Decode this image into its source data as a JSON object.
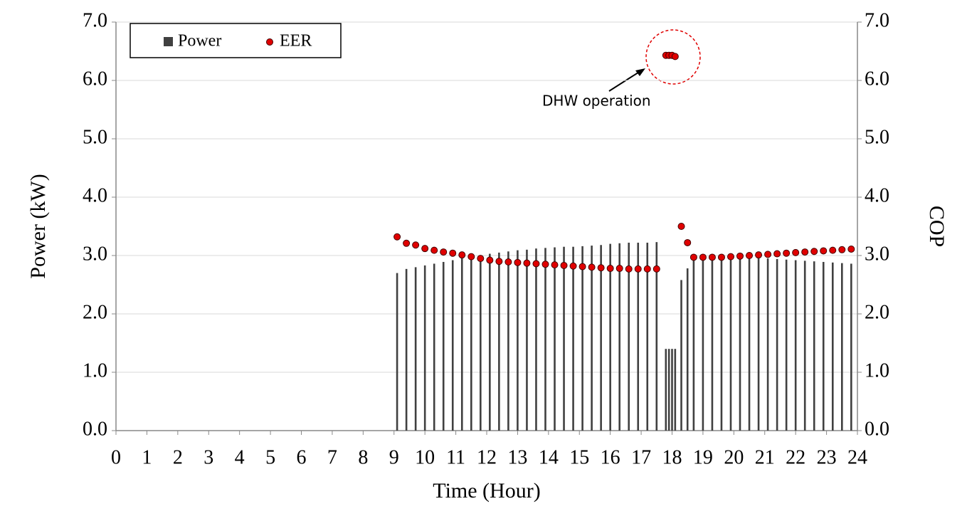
{
  "chart_data": {
    "type": "bar-scatter",
    "x_label": "Time (Hour)",
    "y_label": "Power (kW)",
    "y2_label": "COP",
    "annotation": "DHW operation",
    "x": [
      9.1,
      9.4,
      9.7,
      10.0,
      10.3,
      10.6,
      10.9,
      11.2,
      11.5,
      11.8,
      12.1,
      12.4,
      12.7,
      13.0,
      13.3,
      13.6,
      13.9,
      14.2,
      14.5,
      14.8,
      15.1,
      15.4,
      15.7,
      16.0,
      16.3,
      16.6,
      16.9,
      17.2,
      17.5,
      17.8,
      17.9,
      18.0,
      18.1,
      18.3,
      18.5,
      18.7,
      19.0,
      19.3,
      19.6,
      19.9,
      20.2,
      20.5,
      20.8,
      21.1,
      21.4,
      21.7,
      22.0,
      22.3,
      22.6,
      22.9,
      23.2,
      23.5,
      23.8
    ],
    "series": [
      {
        "name": "Power",
        "color": "#404040",
        "mark": "bar",
        "values": [
          2.7,
          2.77,
          2.8,
          2.83,
          2.86,
          2.89,
          2.92,
          2.95,
          2.98,
          3.0,
          3.03,
          3.05,
          3.07,
          3.09,
          3.1,
          3.12,
          3.13,
          3.14,
          3.15,
          3.15,
          3.16,
          3.17,
          3.18,
          3.2,
          3.21,
          3.22,
          3.22,
          3.22,
          3.23,
          1.4,
          1.4,
          1.4,
          1.4,
          2.58,
          2.78,
          2.96,
          2.97,
          2.97,
          2.97,
          2.97,
          2.96,
          2.96,
          2.95,
          2.95,
          2.94,
          2.93,
          2.92,
          2.91,
          2.9,
          2.89,
          2.88,
          2.87,
          2.86
        ]
      },
      {
        "name": "EER",
        "color": "#e00000",
        "mark": "dot",
        "axis": "y2",
        "values": [
          3.32,
          3.21,
          3.18,
          3.12,
          3.09,
          3.06,
          3.04,
          3.01,
          2.98,
          2.95,
          2.92,
          2.9,
          2.89,
          2.88,
          2.87,
          2.86,
          2.85,
          2.84,
          2.83,
          2.82,
          2.81,
          2.8,
          2.79,
          2.78,
          2.78,
          2.77,
          2.77,
          2.77,
          2.77,
          6.43,
          6.43,
          6.43,
          6.41,
          3.5,
          3.22,
          2.97,
          2.97,
          2.97,
          2.97,
          2.98,
          2.99,
          3.0,
          3.01,
          3.02,
          3.03,
          3.04,
          3.05,
          3.06,
          3.07,
          3.08,
          3.09,
          3.1,
          3.11
        ]
      }
    ],
    "xlim": [
      0,
      24
    ],
    "xticks": [
      0,
      1,
      2,
      3,
      4,
      5,
      6,
      7,
      8,
      9,
      10,
      11,
      12,
      13,
      14,
      15,
      16,
      17,
      18,
      19,
      20,
      21,
      22,
      23,
      24
    ],
    "ylim": [
      0,
      7
    ],
    "yticks": [
      {
        "value": 0,
        "label": "0.0"
      },
      {
        "value": 1,
        "label": "1.0"
      },
      {
        "value": 2,
        "label": "2.0"
      },
      {
        "value": 3,
        "label": "3.0"
      },
      {
        "value": 4,
        "label": "4.0"
      },
      {
        "value": 5,
        "label": "5.0"
      },
      {
        "value": 6,
        "label": "6.0"
      },
      {
        "value": 7,
        "label": "7.0"
      }
    ],
    "y2lim": [
      0,
      7
    ],
    "y2ticks": [
      {
        "value": 0,
        "label": "0.0"
      },
      {
        "value": 1,
        "label": "1.0"
      },
      {
        "value": 2,
        "label": "2.0"
      },
      {
        "value": 3,
        "label": "3.0"
      },
      {
        "value": 4,
        "label": "4.0"
      },
      {
        "value": 5,
        "label": "5.0"
      },
      {
        "value": 6,
        "label": "6.0"
      },
      {
        "value": 7,
        "label": "7.0"
      }
    ],
    "grid": true,
    "legend": "top-left"
  }
}
